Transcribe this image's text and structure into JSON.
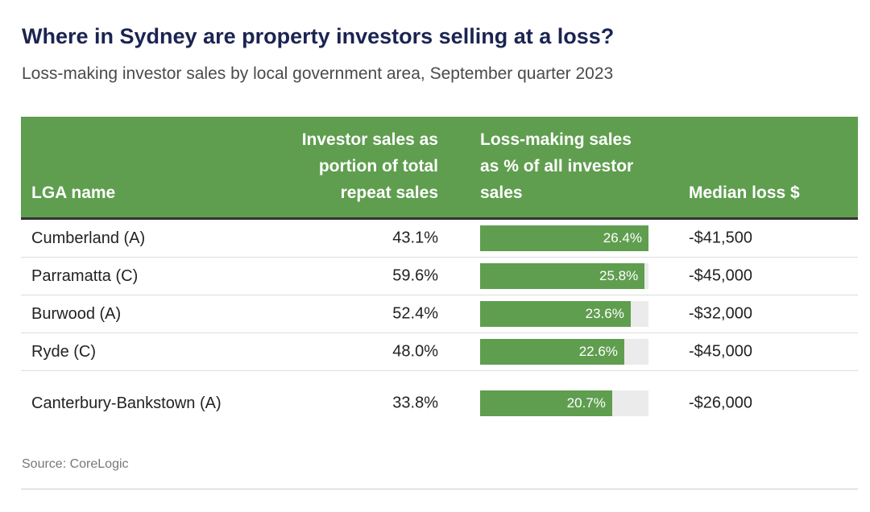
{
  "title": "Where in Sydney are property investors selling at a loss?",
  "subtitle": "Loss-making investor sales by local government area, September quarter 2023",
  "source": "Source: CoreLogic",
  "colors": {
    "header_bg": "#5f9e4f",
    "bar": "#5f9e4f",
    "bar_track": "#ebebeb",
    "title": "#1b2451"
  },
  "chart_data": {
    "type": "table",
    "columns": [
      "LGA name",
      "Investor sales as portion of total repeat sales",
      "Loss-making sales as % of all investor sales",
      "Median loss $"
    ],
    "column_lines": {
      "lga": [
        "LGA name"
      ],
      "inv": [
        "Investor sales as",
        "portion of total",
        "repeat sales"
      ],
      "loss": [
        "Loss-making sales",
        "as % of all investor",
        "sales"
      ],
      "med": [
        "Median loss $"
      ]
    },
    "bar_max": 26.4,
    "rows": [
      {
        "lga": "Cumberland (A)",
        "inv": "43.1%",
        "loss_value": 26.4,
        "loss_label": "26.4%",
        "median": "-$41,500"
      },
      {
        "lga": "Parramatta (C)",
        "inv": "59.6%",
        "loss_value": 25.8,
        "loss_label": "25.8%",
        "median": "-$45,000"
      },
      {
        "lga": "Burwood (A)",
        "inv": "52.4%",
        "loss_value": 23.6,
        "loss_label": "23.6%",
        "median": "-$32,000"
      },
      {
        "lga": "Ryde (C)",
        "inv": "48.0%",
        "loss_value": 22.6,
        "loss_label": "22.6%",
        "median": "-$45,000"
      },
      {
        "lga": "Canterbury-Bankstown (A)",
        "inv": "33.8%",
        "loss_value": 20.7,
        "loss_label": "20.7%",
        "median": "-$26,000"
      }
    ]
  }
}
